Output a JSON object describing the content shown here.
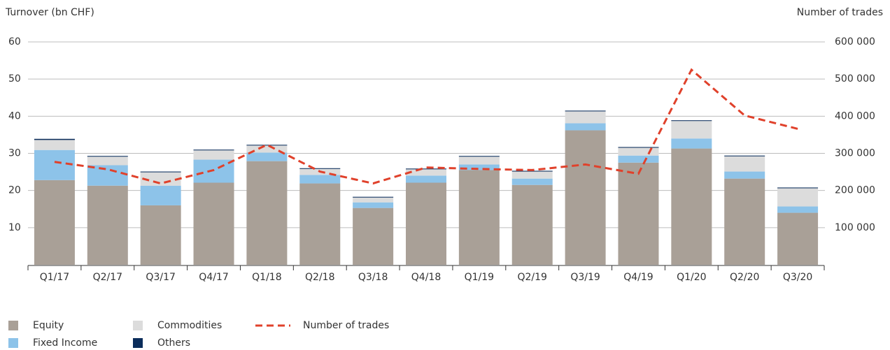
{
  "chart_data": {
    "type": "bar",
    "stacked": true,
    "y_axis_title": "Turnover (bn CHF)",
    "y2_axis_title": "Number of trades",
    "categories": [
      "Q1/17",
      "Q2/17",
      "Q3/17",
      "Q4/17",
      "Q1/18",
      "Q2/18",
      "Q3/18",
      "Q4/18",
      "Q1/19",
      "Q2/19",
      "Q3/19",
      "Q4/19",
      "Q1/20",
      "Q2/20",
      "Q3/20"
    ],
    "series": [
      {
        "name": "Equity",
        "color": "#a9a097",
        "values": [
          22.8,
          21.3,
          16.0,
          22.1,
          27.9,
          21.9,
          15.3,
          22.1,
          25.5,
          21.5,
          36.2,
          27.5,
          31.3,
          23.2,
          14.0
        ]
      },
      {
        "name": "Fixed Income",
        "color": "#8dc3e9",
        "values": [
          8.1,
          5.5,
          5.3,
          6.2,
          2.3,
          2.3,
          1.5,
          1.9,
          1.5,
          1.7,
          1.9,
          1.9,
          2.7,
          1.9,
          1.7
        ]
      },
      {
        "name": "Commodities",
        "color": "#dcdcdc",
        "values": [
          2.7,
          2.3,
          3.6,
          2.5,
          1.9,
          1.6,
          1.3,
          1.7,
          2.1,
          1.9,
          3.2,
          2.1,
          4.7,
          4.1,
          4.9
        ]
      },
      {
        "name": "Others",
        "color": "#0b2d5b",
        "values": [
          0.3,
          0.2,
          0.2,
          0.2,
          0.2,
          0.2,
          0.2,
          0.2,
          0.2,
          0.2,
          0.2,
          0.2,
          0.2,
          0.2,
          0.2
        ]
      },
      {
        "name": "Number of trades",
        "color": "#e0412b",
        "type": "line",
        "dashed": true,
        "axis": "y2",
        "values": [
          277000,
          257000,
          219000,
          255000,
          323000,
          251000,
          219000,
          262000,
          258000,
          255000,
          270000,
          245000,
          525000,
          402000,
          366000
        ]
      }
    ],
    "ylim": [
      0,
      60
    ],
    "yticks": [
      10,
      20,
      30,
      40,
      50,
      60
    ],
    "y2lim": [
      0,
      600000
    ],
    "y2ticks": [
      {
        "value": 100000,
        "label": "100 000"
      },
      {
        "value": 200000,
        "label": "200 000"
      },
      {
        "value": 300000,
        "label": "300 000"
      },
      {
        "value": 400000,
        "label": "400 000"
      },
      {
        "value": 500000,
        "label": "500 000"
      },
      {
        "value": 600000,
        "label": "600 000"
      }
    ],
    "grid": true
  }
}
